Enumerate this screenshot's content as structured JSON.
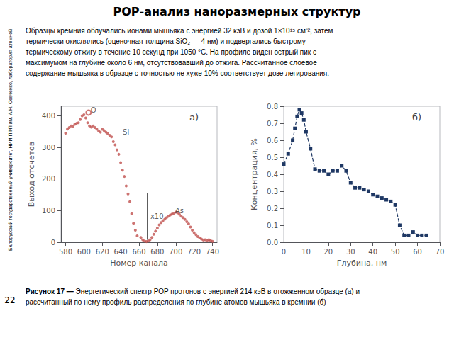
{
  "title": "РОР-анализ наноразмерных структур",
  "subtitle": [
    "Образцы кремния облучались ионами мышьяка с энергией 32 кэВ и дозой 1×10¹⁵ см⁻², затем",
    "термически окислялись (оценочная толщина SiO₂ — 4 нм) и подвергались быстрому",
    "термическому отжигу в течение 10 секунд при 1050 °C. На профиле виден острый пик с",
    "максимумом на глубине около 6 нм, отсутствовавший до отжига. Рассчитанное слоевое",
    "содержание мышьяка в образце с точностью не хуже 10% соответствует дозе легирования."
  ],
  "annotations": [
    "Рисунок 17 —",
    " Энергетический спектр РОР протонов с энергией 214 кэВ в отожженном образце (а) и\nрассчитанный по нему профиль распределения по глубине атомов мышьяка в кремнии (б)",
    "22",
    "Белорусский государственный университет, НИИ ПФП им. А.Н. Севченко, лаборатория атомной"
  ],
  "chart_data": [
    {
      "type": "scatter",
      "title": "а)",
      "x_label": "Номер канала",
      "y_label": "Выход отсчетов",
      "xlim": [
        575,
        745
      ],
      "ylim": [
        0,
        430
      ],
      "xticks": [
        580,
        600,
        620,
        640,
        660,
        680,
        700,
        720,
        740
      ],
      "yticks": [
        0,
        100,
        200,
        300,
        400
      ],
      "grid": false,
      "series": [
        {
          "color": "#C0504D",
          "marker": "circle",
          "x": [
            580,
            582,
            584,
            586,
            588,
            590,
            592,
            594,
            596,
            598,
            600,
            602,
            604,
            606,
            608,
            610,
            612,
            614,
            616,
            618,
            620,
            622,
            624,
            626,
            628,
            630,
            632,
            634,
            636,
            638,
            640,
            642,
            644,
            646,
            648,
            650,
            652,
            654,
            656,
            658
          ],
          "values": [
            345,
            358,
            363,
            368,
            366,
            373,
            376,
            378,
            388,
            400,
            403,
            393,
            378,
            368,
            364,
            368,
            363,
            358,
            352,
            348,
            357,
            353,
            348,
            343,
            338,
            333,
            318,
            308,
            292,
            278,
            252,
            228,
            208,
            178,
            153,
            128,
            90,
            60,
            38,
            20
          ]
        },
        {
          "color": "#C0504D",
          "marker": "circle",
          "x": [
            662,
            664,
            666,
            668,
            670,
            672,
            674,
            676,
            678,
            680,
            682,
            684,
            686,
            688,
            690,
            692,
            694,
            696,
            698,
            700,
            702,
            704,
            706,
            708,
            710,
            712,
            714,
            716,
            718,
            720,
            722,
            724,
            726,
            728,
            730,
            732,
            734,
            736,
            738,
            740
          ],
          "values": [
            15,
            8,
            4,
            2,
            4,
            8,
            15,
            25,
            35,
            45,
            55,
            62,
            68,
            73,
            78,
            82,
            86,
            89,
            92,
            95,
            93,
            88,
            82,
            78,
            72,
            65,
            58,
            48,
            38,
            30,
            24,
            18,
            14,
            10,
            7,
            8,
            5,
            8,
            5,
            3
          ]
        },
        {
          "color": "#C0504D",
          "marker": "open_circle",
          "x": [
            605
          ],
          "values": [
            410
          ]
        },
        {
          "type": "line",
          "color": "#555555",
          "x": [
            669,
            669
          ],
          "values": [
            155,
            8
          ]
        }
      ],
      "annotations": [
        {
          "text": "Si",
          "x": 640,
          "y": 348
        },
        {
          "text": "As",
          "x": 697,
          "y": 100
        },
        {
          "text": "O",
          "x": 605,
          "y": 418
        },
        {
          "text": "x10",
          "x": 670,
          "y": 81.5
        }
      ]
    },
    {
      "type": "line",
      "title": "б)",
      "x_label": "Глубина, нм",
      "y_label": "Концентрация, %",
      "xlim": [
        0,
        70
      ],
      "ylim": [
        0,
        0.8
      ],
      "xticks": [
        0,
        10,
        20,
        30,
        40,
        50,
        60,
        70
      ],
      "yticks": [
        {
          "value": 0,
          "label": "0.0"
        },
        0.1,
        0.2,
        0.3,
        0.4,
        0.5,
        0.6,
        0.7,
        0.8
      ],
      "grid": false,
      "series": [
        {
          "color": "#1F3864",
          "marker": "square",
          "line_style": "dashed",
          "x": [
            0,
            2,
            4,
            5,
            6,
            7,
            8,
            9,
            10,
            12,
            14,
            16,
            18,
            20,
            22,
            24,
            26,
            28,
            30,
            32,
            34,
            36,
            38,
            40,
            42,
            44,
            46,
            48,
            50,
            52,
            54,
            56,
            58,
            60,
            62,
            64
          ],
          "values": [
            0.46,
            0.52,
            0.6,
            0.67,
            0.74,
            0.78,
            0.76,
            0.72,
            0.65,
            0.55,
            0.43,
            0.42,
            0.42,
            0.4,
            0.42,
            0.42,
            0.45,
            0.42,
            0.35,
            0.32,
            0.32,
            0.31,
            0.3,
            0.28,
            0.27,
            0.26,
            0.25,
            0.24,
            0.22,
            0.1,
            0.04,
            0.04,
            0.06,
            0.04,
            0.04,
            0.04
          ]
        }
      ]
    }
  ]
}
